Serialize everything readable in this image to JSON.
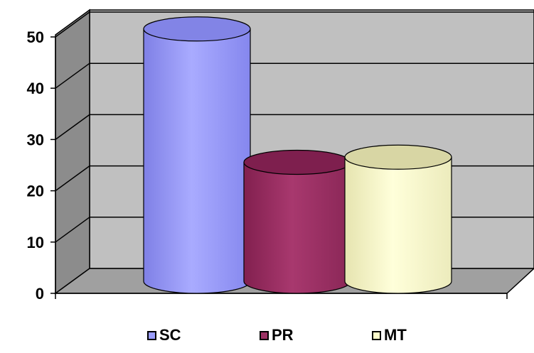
{
  "chart_data": {
    "type": "bar",
    "style": "3d-cylinder",
    "categories": [
      "SC",
      "PR",
      "MT"
    ],
    "values": [
      51,
      25,
      26
    ],
    "ylim": [
      0,
      50
    ],
    "yticks": [
      "0",
      "10",
      "20",
      "30",
      "40",
      "50"
    ],
    "grid": true,
    "legend_placement": "bottom",
    "colors": {
      "SC": "#9a9cfc",
      "PR": "#9b3264",
      "MT": "#fdfccb",
      "wall": "#c0c0c0",
      "side_wall": "#8c8c8c",
      "floor": "#a0a0a0"
    }
  }
}
